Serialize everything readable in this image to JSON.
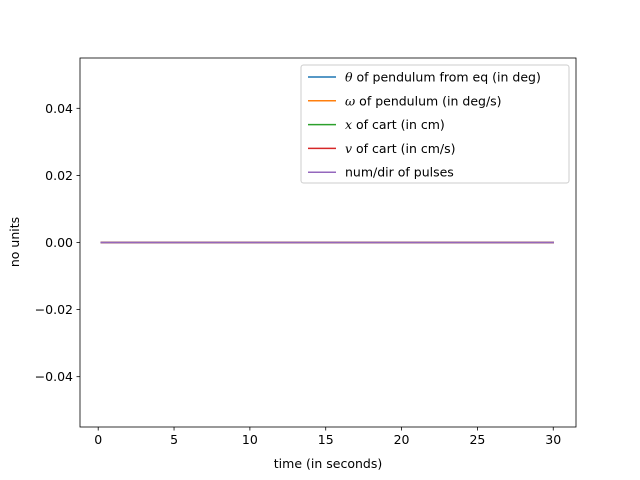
{
  "chart_data": {
    "type": "line",
    "title": "",
    "xlabel": "time (in seconds)",
    "ylabel": "no units",
    "xlim": [
      -1.2,
      31.5
    ],
    "ylim": [
      -0.055,
      0.055
    ],
    "xticks": [
      0,
      5,
      10,
      15,
      20,
      25,
      30
    ],
    "xtick_labels": [
      "0",
      "5",
      "10",
      "15",
      "20",
      "25",
      "30"
    ],
    "yticks": [
      -0.04,
      -0.02,
      0.0,
      0.02,
      0.04
    ],
    "ytick_labels": [
      "−0.04",
      "−0.02",
      "0.00",
      "0.02",
      "0.04"
    ],
    "grid": false,
    "legend_position": "top-right",
    "series": [
      {
        "name_symbol": "θ",
        "name_rest": " of pendulum from eq (in deg)",
        "color": "#1f77b4",
        "x": [
          0.2,
          30.0
        ],
        "y": [
          0.0,
          0.0
        ]
      },
      {
        "name_symbol": "ω",
        "name_rest": " of pendulum (in deg/s)",
        "color": "#ff7f0e",
        "x": [
          0.2,
          30.0
        ],
        "y": [
          0.0,
          0.0
        ]
      },
      {
        "name_symbol": "x",
        "name_rest": " of cart (in cm)",
        "color": "#2ca02c",
        "x": [
          0.2,
          30.0
        ],
        "y": [
          0.0,
          0.0
        ]
      },
      {
        "name_symbol": "v",
        "name_rest": " of cart  (in cm/s)",
        "color": "#d62728",
        "x": [
          0.2,
          30.0
        ],
        "y": [
          0.0,
          0.0
        ]
      },
      {
        "name_symbol": "",
        "name_rest": "num/dir of pulses",
        "color": "#9467bd",
        "x": [
          0.2,
          30.0
        ],
        "y": [
          0.0,
          0.0
        ]
      }
    ]
  }
}
